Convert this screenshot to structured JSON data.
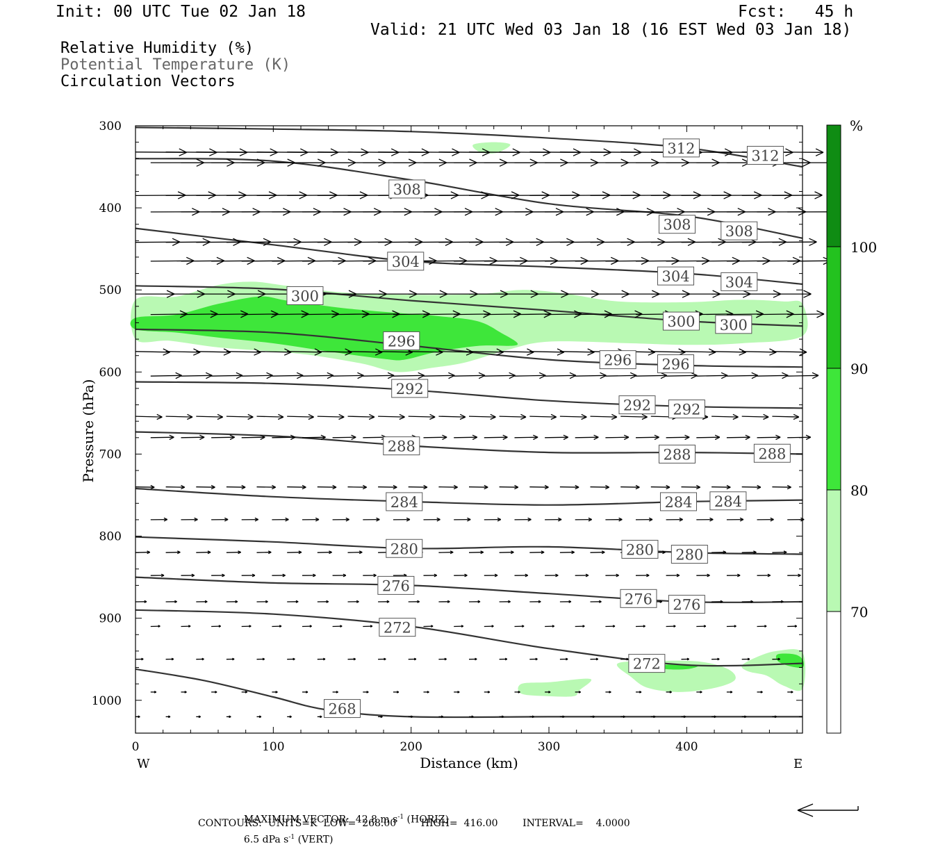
{
  "header": {
    "init": "Init: 00 UTC Tue 02 Jan 18",
    "fcst": "Fcst:   45 h",
    "valid": "Valid: 21 UTC Wed 03 Jan 18 (16 EST Wed 03 Jan 18)",
    "fields": [
      "Relative Humidity (%)",
      "Potential Temperature (K)",
      "Circulation Vectors"
    ]
  },
  "chart_data": {
    "type": "cross-section",
    "xlabel": "Distance (km)",
    "ylabel": "Pressure (hPa)",
    "xlim": [
      0,
      484
    ],
    "ylim": [
      300,
      1040
    ],
    "x_ticks": [
      0,
      100,
      200,
      300,
      400
    ],
    "y_ticks": [
      300,
      400,
      500,
      600,
      700,
      800,
      900,
      1000
    ],
    "end_labels": {
      "left": "W",
      "right": "E"
    },
    "colorbar": {
      "unit": "%",
      "levels": [
        70,
        80,
        90,
        100
      ],
      "colors": [
        "#ffffff",
        "#b9f9b3",
        "#3ee63a",
        "#23c21f",
        "#0f8c13"
      ]
    },
    "rh_regions": [
      {
        "level": 70,
        "color": "#b9f9b3",
        "polygon": [
          [
            0,
            512
          ],
          [
            30,
            508
          ],
          [
            60,
            494
          ],
          [
            85,
            490
          ],
          [
            110,
            495
          ],
          [
            150,
            503
          ],
          [
            200,
            506
          ],
          [
            250,
            505
          ],
          [
            280,
            500
          ],
          [
            310,
            504
          ],
          [
            350,
            514
          ],
          [
            400,
            515
          ],
          [
            440,
            512
          ],
          [
            470,
            514
          ],
          [
            484,
            517
          ],
          [
            484,
            556
          ],
          [
            440,
            565
          ],
          [
            400,
            567
          ],
          [
            360,
            565
          ],
          [
            300,
            563
          ],
          [
            270,
            573
          ],
          [
            240,
            588
          ],
          [
            215,
            595
          ],
          [
            190,
            600
          ],
          [
            165,
            590
          ],
          [
            130,
            580
          ],
          [
            100,
            575
          ],
          [
            60,
            570
          ],
          [
            25,
            562
          ],
          [
            0,
            560
          ]
        ]
      },
      {
        "level": 80,
        "color": "#3ee63a",
        "polygon": [
          [
            0,
            534
          ],
          [
            30,
            530
          ],
          [
            60,
            517
          ],
          [
            90,
            508
          ],
          [
            110,
            513
          ],
          [
            150,
            522
          ],
          [
            190,
            528
          ],
          [
            220,
            532
          ],
          [
            248,
            538
          ],
          [
            265,
            552
          ],
          [
            277,
            567
          ],
          [
            250,
            568
          ],
          [
            220,
            575
          ],
          [
            195,
            585
          ],
          [
            180,
            584
          ],
          [
            140,
            575
          ],
          [
            100,
            565
          ],
          [
            60,
            558
          ],
          [
            30,
            552
          ],
          [
            0,
            548
          ]
        ]
      },
      {
        "level": 70,
        "color": "#b9f9b3",
        "polygon": [
          [
            245,
            323
          ],
          [
            260,
            320
          ],
          [
            272,
            323
          ],
          [
            262,
            333
          ],
          [
            250,
            332
          ]
        ]
      },
      {
        "level": 70,
        "color": "#b9f9b3",
        "polygon": [
          [
            280,
            980
          ],
          [
            300,
            978
          ],
          [
            330,
            974
          ],
          [
            322,
            988
          ],
          [
            318,
            995
          ],
          [
            300,
            995
          ],
          [
            280,
            992
          ]
        ]
      },
      {
        "level": 70,
        "color": "#b9f9b3",
        "polygon": [
          [
            350,
            955
          ],
          [
            380,
            952
          ],
          [
            410,
            953
          ],
          [
            430,
            962
          ],
          [
            435,
            975
          ],
          [
            420,
            985
          ],
          [
            395,
            990
          ],
          [
            372,
            985
          ],
          [
            360,
            972
          ]
        ]
      },
      {
        "level": 70,
        "color": "#b9f9b3",
        "polygon": [
          [
            440,
            958
          ],
          [
            450,
            948
          ],
          [
            465,
            940
          ],
          [
            484,
            942
          ],
          [
            484,
            986
          ],
          [
            470,
            982
          ],
          [
            458,
            970
          ],
          [
            445,
            965
          ]
        ]
      },
      {
        "level": 80,
        "color": "#3ee63a",
        "polygon": [
          [
            466,
            944
          ],
          [
            478,
            944
          ],
          [
            484,
            950
          ],
          [
            484,
            960
          ],
          [
            474,
            958
          ],
          [
            466,
            952
          ]
        ]
      },
      {
        "level": 80,
        "color": "#3ee63a",
        "polygon": [
          [
            378,
            958
          ],
          [
            395,
            956
          ],
          [
            408,
            958
          ],
          [
            400,
            962
          ],
          [
            385,
            962
          ]
        ]
      }
    ],
    "theta_contours": [
      {
        "value": 312,
        "points": [
          [
            0,
            302
          ],
          [
            100,
            304
          ],
          [
            200,
            307
          ],
          [
            300,
            315
          ],
          [
            400,
            327
          ],
          [
            484,
            350
          ]
        ],
        "labels": [
          [
            396,
            327
          ],
          [
            457,
            336
          ]
        ]
      },
      {
        "value": 308,
        "points": [
          [
            0,
            340
          ],
          [
            100,
            343
          ],
          [
            200,
            366
          ],
          [
            300,
            395
          ],
          [
            400,
            410
          ],
          [
            484,
            437
          ]
        ],
        "labels": [
          [
            197,
            377
          ],
          [
            393,
            420
          ],
          [
            438,
            428
          ]
        ]
      },
      {
        "value": 304,
        "points": [
          [
            0,
            425
          ],
          [
            100,
            445
          ],
          [
            200,
            465
          ],
          [
            300,
            472
          ],
          [
            400,
            480
          ],
          [
            484,
            493
          ]
        ],
        "labels": [
          [
            196,
            465
          ],
          [
            392,
            483
          ],
          [
            438,
            490
          ]
        ]
      },
      {
        "value": 300,
        "points": [
          [
            0,
            495
          ],
          [
            100,
            499
          ],
          [
            200,
            513
          ],
          [
            300,
            525
          ],
          [
            400,
            538
          ],
          [
            484,
            544
          ]
        ],
        "labels": [
          [
            123,
            507
          ],
          [
            396,
            538
          ],
          [
            434,
            542
          ]
        ]
      },
      {
        "value": 296,
        "points": [
          [
            0,
            548
          ],
          [
            100,
            552
          ],
          [
            200,
            568
          ],
          [
            300,
            585
          ],
          [
            400,
            592
          ],
          [
            484,
            594
          ]
        ],
        "labels": [
          [
            193,
            562
          ],
          [
            350,
            585
          ],
          [
            392,
            590
          ]
        ]
      },
      {
        "value": 292,
        "points": [
          [
            0,
            612
          ],
          [
            100,
            614
          ],
          [
            200,
            622
          ],
          [
            300,
            635
          ],
          [
            400,
            642
          ],
          [
            484,
            644
          ]
        ],
        "labels": [
          [
            199,
            620
          ],
          [
            364,
            640
          ],
          [
            400,
            645
          ]
        ]
      },
      {
        "value": 288,
        "points": [
          [
            0,
            673
          ],
          [
            100,
            678
          ],
          [
            200,
            690
          ],
          [
            300,
            698
          ],
          [
            400,
            698
          ],
          [
            484,
            700
          ]
        ],
        "labels": [
          [
            193,
            690
          ],
          [
            393,
            700
          ],
          [
            462,
            699
          ]
        ]
      },
      {
        "value": 284,
        "points": [
          [
            0,
            742
          ],
          [
            100,
            752
          ],
          [
            200,
            758
          ],
          [
            300,
            762
          ],
          [
            400,
            758
          ],
          [
            484,
            756
          ]
        ],
        "labels": [
          [
            195,
            758
          ],
          [
            394,
            758
          ],
          [
            430,
            757
          ]
        ]
      },
      {
        "value": 280,
        "points": [
          [
            0,
            801
          ],
          [
            100,
            807
          ],
          [
            200,
            815
          ],
          [
            300,
            813
          ],
          [
            400,
            820
          ],
          [
            484,
            822
          ]
        ],
        "labels": [
          [
            195,
            815
          ],
          [
            366,
            816
          ],
          [
            402,
            822
          ]
        ]
      },
      {
        "value": 276,
        "points": [
          [
            0,
            850
          ],
          [
            100,
            857
          ],
          [
            200,
            860
          ],
          [
            300,
            870
          ],
          [
            400,
            880
          ],
          [
            484,
            880
          ]
        ],
        "labels": [
          [
            189,
            860
          ],
          [
            365,
            876
          ],
          [
            400,
            883
          ]
        ]
      },
      {
        "value": 272,
        "points": [
          [
            0,
            890
          ],
          [
            100,
            895
          ],
          [
            200,
            910
          ],
          [
            300,
            937
          ],
          [
            400,
            957
          ],
          [
            484,
            955
          ]
        ],
        "labels": [
          [
            190,
            911
          ],
          [
            371,
            955
          ]
        ]
      },
      {
        "value": 268,
        "points": [
          [
            0,
            962
          ],
          [
            50,
            976
          ],
          [
            100,
            996
          ],
          [
            140,
            1012
          ],
          [
            200,
            1020
          ],
          [
            300,
            1020
          ],
          [
            400,
            1020
          ],
          [
            484,
            1020
          ]
        ],
        "labels": [
          [
            150,
            1010
          ]
        ]
      }
    ],
    "vector_rows": [
      {
        "p": 332,
        "u": 0.92,
        "w": -0.04
      },
      {
        "p": 345,
        "u": 0.96,
        "w": 0.0
      },
      {
        "p": 385,
        "u": 0.9,
        "w": 0.04
      },
      {
        "p": 405,
        "u": 0.88,
        "w": 0.02
      },
      {
        "p": 442,
        "u": 0.8,
        "w": 0.04
      },
      {
        "p": 465,
        "u": 0.78,
        "w": 0.05
      },
      {
        "p": 505,
        "u": 0.7,
        "w": 0.0
      },
      {
        "p": 530,
        "u": 0.66,
        "w": 0.06
      },
      {
        "p": 575,
        "u": 0.62,
        "w": -0.08
      },
      {
        "p": 605,
        "u": 0.56,
        "w": 0.08
      },
      {
        "p": 654,
        "u": 0.48,
        "w": -0.08
      },
      {
        "p": 680,
        "u": 0.42,
        "w": 0.05
      },
      {
        "p": 740,
        "u": 0.34,
        "w": -0.04
      },
      {
        "p": 780,
        "u": 0.3,
        "w": 0.03
      },
      {
        "p": 820,
        "u": 0.26,
        "w": 0.04
      },
      {
        "p": 848,
        "u": 0.24,
        "w": 0.02
      },
      {
        "p": 880,
        "u": 0.2,
        "w": 0.02
      },
      {
        "p": 910,
        "u": 0.17,
        "w": 0.03
      },
      {
        "p": 950,
        "u": 0.14,
        "w": 0.02
      },
      {
        "p": 990,
        "u": 0.1,
        "w": 0.0
      },
      {
        "p": 1020,
        "u": 0.08,
        "w": 0.0
      }
    ],
    "max_vector_scale": {
      "horiz": 42.8,
      "vert": 6.5
    }
  },
  "footer": {
    "line1_a": "MAXIMUM VECTOR:  42.8 m s",
    "line1_b": " (HORIZ)",
    "line1_c": "6.5 dPa s",
    "line1_d": " (VERT)",
    "exp": "-1",
    "line2": "CONTOURS:  UNITS=K  LOW=  268.00        HIGH=  416.00        INTERVAL=    4.0000"
  }
}
